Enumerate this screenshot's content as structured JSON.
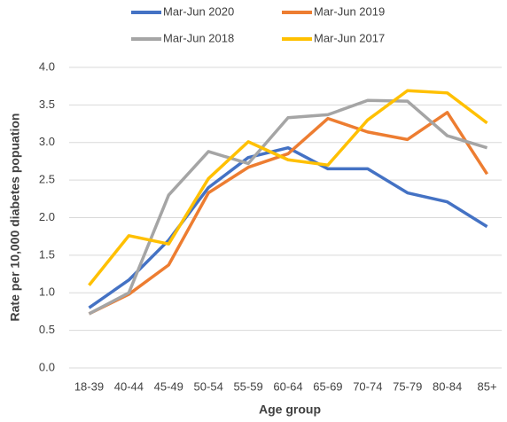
{
  "chart_data": {
    "type": "line",
    "categories": [
      "18-39",
      "40-44",
      "45-49",
      "50-54",
      "55-59",
      "60-64",
      "65-69",
      "70-74",
      "75-79",
      "80-84",
      "85+"
    ],
    "series": [
      {
        "name": "Mar-Jun 2020",
        "color": "#4472c4",
        "values": [
          0.8,
          1.17,
          1.7,
          2.4,
          2.8,
          2.93,
          2.65,
          2.65,
          2.33,
          2.21,
          1.88
        ]
      },
      {
        "name": "Mar-Jun 2019",
        "color": "#ed7d31",
        "values": [
          0.72,
          0.98,
          1.37,
          2.33,
          2.67,
          2.85,
          3.32,
          3.14,
          3.04,
          3.4,
          2.58
        ]
      },
      {
        "name": "Mar-Jun 2018",
        "color": "#a5a5a5",
        "values": [
          0.72,
          1.0,
          2.3,
          2.88,
          2.72,
          3.33,
          3.37,
          3.56,
          3.55,
          3.09,
          2.93
        ]
      },
      {
        "name": "Mar-Jun 2017",
        "color": "#ffc000",
        "values": [
          1.1,
          1.76,
          1.65,
          2.52,
          3.01,
          2.77,
          2.7,
          3.3,
          3.69,
          3.66,
          3.26
        ]
      }
    ],
    "x_label": "Age group",
    "y_label": "Rate per 10,000 diabetes popuation",
    "ylim": [
      0,
      4
    ],
    "yticks": [
      {
        "value": 0,
        "label": "0.0"
      },
      {
        "value": 0.5,
        "label": "0.5"
      },
      {
        "value": 1,
        "label": "1.0"
      },
      {
        "value": 1.5,
        "label": "1.5"
      },
      {
        "value": 2,
        "label": "2.0"
      },
      {
        "value": 2.5,
        "label": "2.5"
      },
      {
        "value": 3,
        "label": "3.0"
      },
      {
        "value": 3.5,
        "label": "3.5"
      },
      {
        "value": 4,
        "label": "4.0"
      }
    ],
    "grid": true
  }
}
